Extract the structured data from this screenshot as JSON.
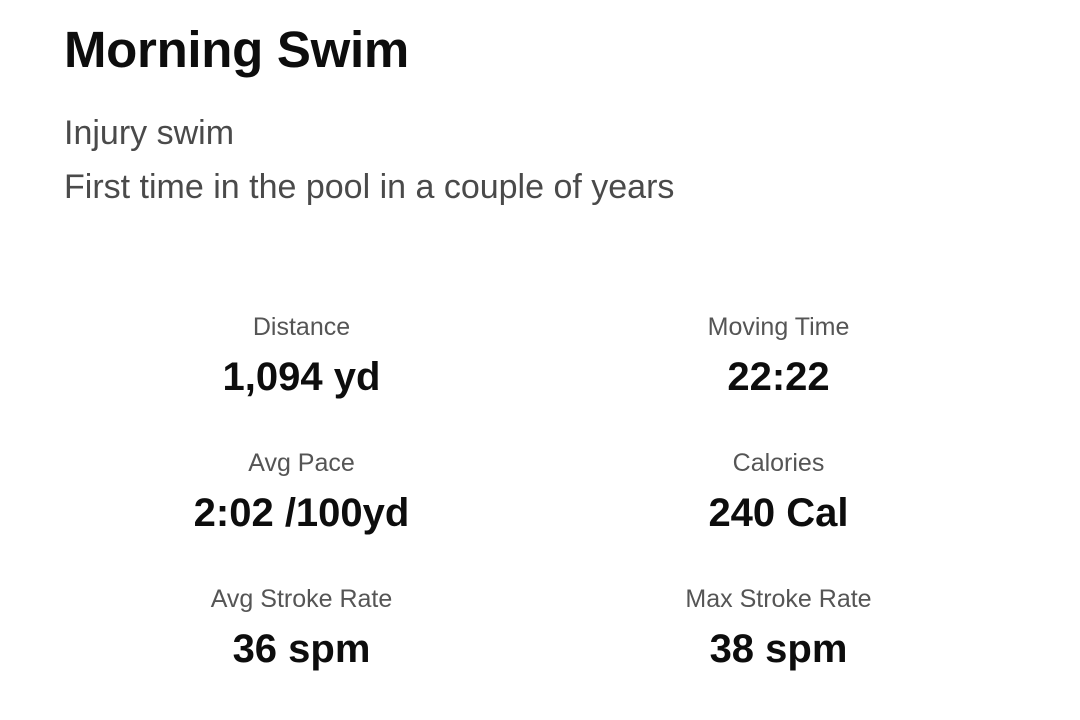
{
  "activity": {
    "title": "Morning Swim",
    "description_lines": [
      "Injury swim",
      "First time in the pool in a couple of years"
    ]
  },
  "stats": [
    {
      "label": "Distance",
      "value": "1,094 yd"
    },
    {
      "label": "Moving Time",
      "value": "22:22"
    },
    {
      "label": "Avg Pace",
      "value": "2:02 /100yd"
    },
    {
      "label": "Calories",
      "value": "240 Cal"
    },
    {
      "label": "Avg Stroke Rate",
      "value": "36 spm"
    },
    {
      "label": "Max Stroke Rate",
      "value": "38 spm"
    }
  ]
}
